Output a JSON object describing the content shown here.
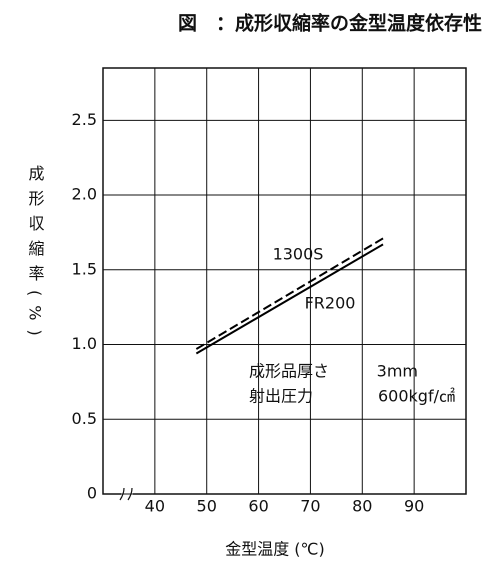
{
  "chart_data": {
    "type": "line",
    "title": "図　：成形収縮率の金型温度依存性",
    "x_label": "金型温度 (℃)",
    "y_label": "成形収縮率(%)",
    "x": [
      48,
      84
    ],
    "series": [
      {
        "name": "1300S",
        "color": "#000000",
        "style": "dashed",
        "values": [
          0.97,
          1.71
        ]
      },
      {
        "name": "FR200",
        "color": "#000000",
        "style": "solid",
        "values": [
          0.94,
          1.67
        ]
      }
    ],
    "annotations": [
      "成形品厚さ",
      "3mm",
      "射出圧力",
      "600kgf/㎠"
    ],
    "xlim": [
      30,
      100
    ],
    "xticks": [
      40,
      50,
      60,
      70,
      80,
      90
    ],
    "ylim": [
      0,
      2.85
    ],
    "yticks": [
      0,
      0.5,
      {
        "value": 1,
        "label": "1.0"
      },
      1.5,
      {
        "value": 2,
        "label": "2.0"
      },
      2.5
    ],
    "grid": true
  }
}
